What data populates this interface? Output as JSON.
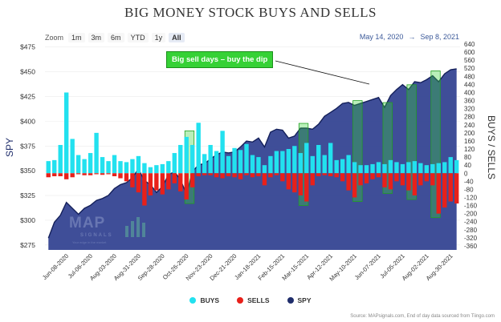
{
  "controls": {
    "zoom_label": "Zoom",
    "zoom_buttons": [
      "1m",
      "3m",
      "6m",
      "YTD",
      "1y",
      "All"
    ],
    "zoom_selected": "All",
    "range_start": "May 14, 2020",
    "range_arrow": "→",
    "range_end": "Sep 8, 2021"
  },
  "watermark": {
    "name": "MAP",
    "sub": "SIGNALS",
    "tagline": "Your edge in the market"
  },
  "colors": {
    "buys": "#22e1ef",
    "sells": "#e8201a",
    "spy": "#1f2d6b",
    "highlight": "#36d136"
  },
  "chart_data": {
    "type": "bar",
    "title": "BIG MONEY STOCK BUYS AND SELLS",
    "ylabel_left": "SPY",
    "ylabel_right": "BUYS / SELLS",
    "annotation": "Big sell days – buy the dip",
    "source": "Source: MAPsignals.com, End of day data sourced from Tiingo.com",
    "x_tick_labels": [
      "Jun-08-2020",
      "Jul-06-2020",
      "Aug-03-2020",
      "Aug-31-2020",
      "Sep-28-2020",
      "Oct-26-2020",
      "Nov-23-2020",
      "Dec-21-2020",
      "Jan-18-2021",
      "Feb-15-2021",
      "Mar-15-2021",
      "Apr-12-2021",
      "May-10-2021",
      "Jun-07-2021",
      "Jul-05-2021",
      "Aug-02-2021",
      "Aug-30-2021"
    ],
    "left_tick_labels": [
      "$275",
      "$300",
      "$325",
      "$350",
      "$375",
      "$400",
      "$425",
      "$450",
      "$475"
    ],
    "right_tick_labels": [
      "-360",
      "-320",
      "-280",
      "-240",
      "-200",
      "-160",
      "-120",
      "-80",
      "-40",
      "0",
      "40",
      "80",
      "120",
      "160",
      "200",
      "240",
      "280",
      "320",
      "360",
      "400",
      "440",
      "480",
      "520",
      "560",
      "600",
      "640"
    ],
    "ylim_left": [
      270,
      478
    ],
    "ylim_right": [
      -380,
      640
    ],
    "week_dates": [
      "2020-05-18",
      "2020-05-25",
      "2020-06-01",
      "2020-06-08",
      "2020-06-15",
      "2020-06-22",
      "2020-06-29",
      "2020-07-06",
      "2020-07-13",
      "2020-07-20",
      "2020-07-27",
      "2020-08-03",
      "2020-08-10",
      "2020-08-17",
      "2020-08-24",
      "2020-08-31",
      "2020-09-07",
      "2020-09-14",
      "2020-09-21",
      "2020-09-28",
      "2020-10-05",
      "2020-10-12",
      "2020-10-19",
      "2020-10-26",
      "2020-11-02",
      "2020-11-09",
      "2020-11-16",
      "2020-11-23",
      "2020-11-30",
      "2020-12-07",
      "2020-12-14",
      "2020-12-21",
      "2020-12-28",
      "2021-01-04",
      "2021-01-11",
      "2021-01-18",
      "2021-01-25",
      "2021-02-01",
      "2021-02-08",
      "2021-02-15",
      "2021-02-22",
      "2021-03-01",
      "2021-03-08",
      "2021-03-15",
      "2021-03-22",
      "2021-03-29",
      "2021-04-05",
      "2021-04-12",
      "2021-04-19",
      "2021-04-26",
      "2021-05-03",
      "2021-05-10",
      "2021-05-17",
      "2021-05-24",
      "2021-05-31",
      "2021-06-07",
      "2021-06-14",
      "2021-06-21",
      "2021-06-28",
      "2021-07-05",
      "2021-07-12",
      "2021-07-19",
      "2021-07-26",
      "2021-08-02",
      "2021-08-09",
      "2021-08-16",
      "2021-08-23",
      "2021-08-30",
      "2021-09-06"
    ],
    "highlight_dates": [
      [
        "2020-10-26",
        "2020-11-02"
      ],
      [
        "2021-03-08",
        "2021-03-15"
      ],
      [
        "2021-05-10",
        "2021-05-17"
      ],
      [
        "2021-06-14",
        "2021-06-21"
      ],
      [
        "2021-07-12",
        "2021-07-19"
      ],
      [
        "2021-08-09",
        "2021-08-16"
      ]
    ],
    "series": [
      {
        "name": "BUYS",
        "values": [
          60,
          65,
          140,
          400,
          170,
          90,
          70,
          100,
          200,
          80,
          60,
          90,
          60,
          55,
          70,
          85,
          50,
          30,
          40,
          45,
          60,
          100,
          140,
          180,
          140,
          250,
          95,
          140,
          110,
          210,
          85,
          125,
          115,
          145,
          90,
          80,
          40,
          85,
          110,
          110,
          120,
          135,
          100,
          150,
          85,
          140,
          90,
          150,
          65,
          70,
          90,
          55,
          40,
          40,
          45,
          55,
          45,
          65,
          55,
          45,
          55,
          60,
          50,
          40,
          45,
          50,
          55,
          80,
          65
        ]
      },
      {
        "name": "SELLS",
        "values": [
          -20,
          -15,
          -15,
          -30,
          -20,
          -5,
          -10,
          -10,
          -5,
          -8,
          -5,
          -15,
          -25,
          -40,
          -70,
          -95,
          -160,
          -110,
          -85,
          -105,
          -80,
          -50,
          -90,
          -130,
          -70,
          -15,
          -10,
          -10,
          -20,
          -25,
          -15,
          -20,
          -30,
          -10,
          -20,
          -15,
          -60,
          -20,
          -10,
          -40,
          -80,
          -95,
          -110,
          -140,
          -60,
          -15,
          -10,
          -15,
          -20,
          -40,
          -85,
          -120,
          -60,
          -50,
          -30,
          -20,
          -70,
          -80,
          -40,
          -60,
          -85,
          -110,
          -60,
          -40,
          -60,
          -200,
          -170,
          -140,
          -150
        ]
      },
      {
        "name": "SPY",
        "values": [
          282,
          298,
          305,
          318,
          312,
          306,
          312,
          315,
          320,
          322,
          325,
          332,
          336,
          338,
          343,
          352,
          340,
          336,
          328,
          334,
          346,
          349,
          341,
          326,
          349,
          356,
          357,
          362,
          366,
          369,
          368,
          369,
          374,
          380,
          379,
          383,
          374,
          389,
          392,
          391,
          383,
          385,
          393,
          393,
          392,
          397,
          405,
          409,
          413,
          418,
          419,
          416,
          418,
          420,
          422,
          424,
          414,
          426,
          432,
          437,
          432,
          440,
          439,
          442,
          446,
          440,
          448,
          452,
          453
        ]
      }
    ]
  }
}
